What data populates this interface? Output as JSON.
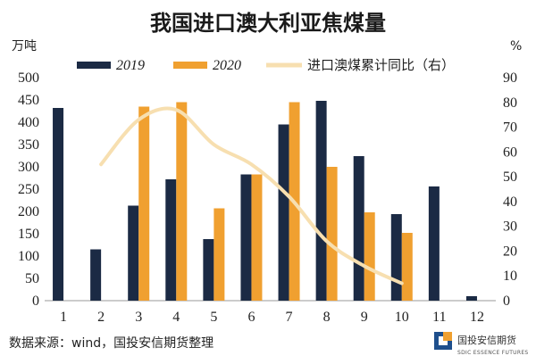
{
  "chart_data": {
    "type": "bar",
    "title": "我国进口澳大利亚焦煤量",
    "ylabel_left": "万吨",
    "ylabel_right": "%",
    "categories": [
      "1",
      "2",
      "3",
      "4",
      "5",
      "6",
      "7",
      "8",
      "9",
      "10",
      "11",
      "12"
    ],
    "series": [
      {
        "name": "2019",
        "type": "bar",
        "axis": "left",
        "color": "#1b2a44",
        "values": [
          432,
          115,
          213,
          272,
          138,
          283,
          395,
          448,
          324,
          194,
          256,
          10
        ]
      },
      {
        "name": "2020",
        "type": "bar",
        "axis": "left",
        "color": "#f0a030",
        "values": [
          null,
          null,
          435,
          445,
          207,
          283,
          445,
          300,
          198,
          152,
          null,
          null
        ]
      },
      {
        "name": "进口澳煤累计同比（右）",
        "type": "line",
        "axis": "right",
        "color": "#f7dfb0",
        "values": [
          null,
          55,
          73,
          77,
          63,
          55,
          42,
          24,
          14,
          7,
          null,
          null
        ]
      }
    ],
    "ylim_left": [
      0,
      500
    ],
    "yticks_left": [
      0,
      50,
      100,
      150,
      200,
      250,
      300,
      350,
      400,
      450,
      500
    ],
    "ylim_right": [
      0,
      90
    ],
    "yticks_right": [
      0,
      10,
      20,
      30,
      40,
      50,
      60,
      70,
      80,
      90
    ],
    "legend": "top"
  },
  "source": "数据来源：wind，国投安信期货整理",
  "logo": {
    "name": "国投安信期货",
    "subtitle": "SDIC ESSENCE FUTURES"
  }
}
